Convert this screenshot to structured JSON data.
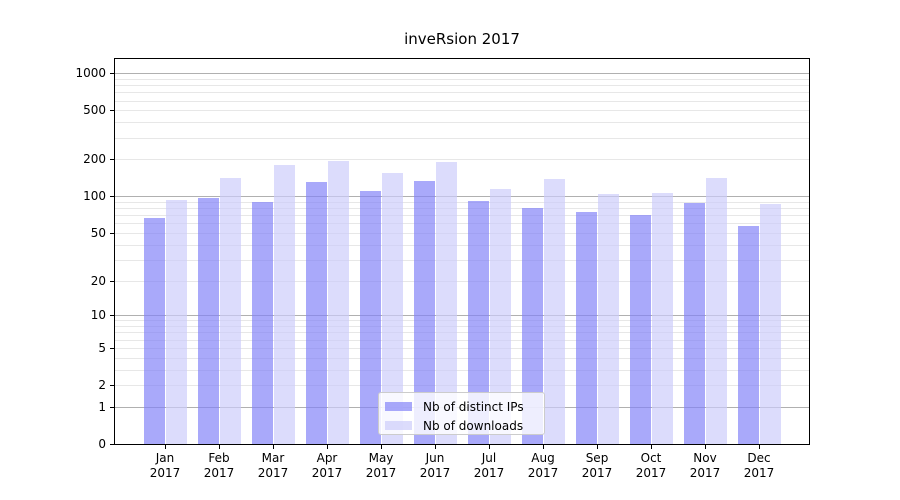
{
  "title": "inveRsion 2017",
  "legend": {
    "items": [
      {
        "label": "Nb of distinct IPs",
        "color": "rgba(128,128,248,0.68)"
      },
      {
        "label": "Nb of downloads",
        "color": "rgba(204,204,250,0.68)"
      }
    ],
    "position": "lower center"
  },
  "chart_data": {
    "type": "bar",
    "title": "inveRsion 2017",
    "categories": [
      "Jan 2017",
      "Feb 2017",
      "Mar 2017",
      "Apr 2017",
      "May 2017",
      "Jun 2017",
      "Jul 2017",
      "Aug 2017",
      "Sep 2017",
      "Oct 2017",
      "Nov 2017",
      "Dec 2017"
    ],
    "month_labels": [
      "Jan",
      "Feb",
      "Mar",
      "Apr",
      "May",
      "Jun",
      "Jul",
      "Aug",
      "Sep",
      "Oct",
      "Nov",
      "Dec"
    ],
    "year_label": "2017",
    "series": [
      {
        "name": "Nb of distinct IPs",
        "color": "rgba(128,128,248,0.68)",
        "values": [
          66,
          97,
          90,
          132,
          111,
          134,
          92,
          81,
          74,
          70,
          89,
          57
        ]
      },
      {
        "name": "Nb of downloads",
        "color": "rgba(204,204,250,0.68)",
        "values": [
          93,
          140,
          181,
          195,
          156,
          192,
          115,
          139,
          104,
          107,
          142,
          86
        ]
      }
    ],
    "yscale": "log10(1+y)",
    "ylim": [
      0,
      1300
    ],
    "y_tick_labels": [
      1000,
      500,
      200,
      100,
      50,
      20,
      10,
      5,
      2,
      1,
      0
    ],
    "grid_major": [
      1,
      10,
      100,
      1000
    ],
    "grid_minor": [
      2,
      3,
      4,
      5,
      6,
      7,
      8,
      9,
      20,
      30,
      40,
      50,
      60,
      70,
      80,
      90,
      200,
      300,
      400,
      500,
      600,
      700,
      800,
      900
    ],
    "legend_position": "lower center",
    "xlabel": "",
    "ylabel": ""
  },
  "colors": {
    "major_grid": "#b0b0b0",
    "minor_grid": "#e7e7e7",
    "axis": "#000000",
    "legend_border": "#cccccc",
    "legend_bg": "rgba(255,255,255,0.8)",
    "background": "#ffffff"
  }
}
